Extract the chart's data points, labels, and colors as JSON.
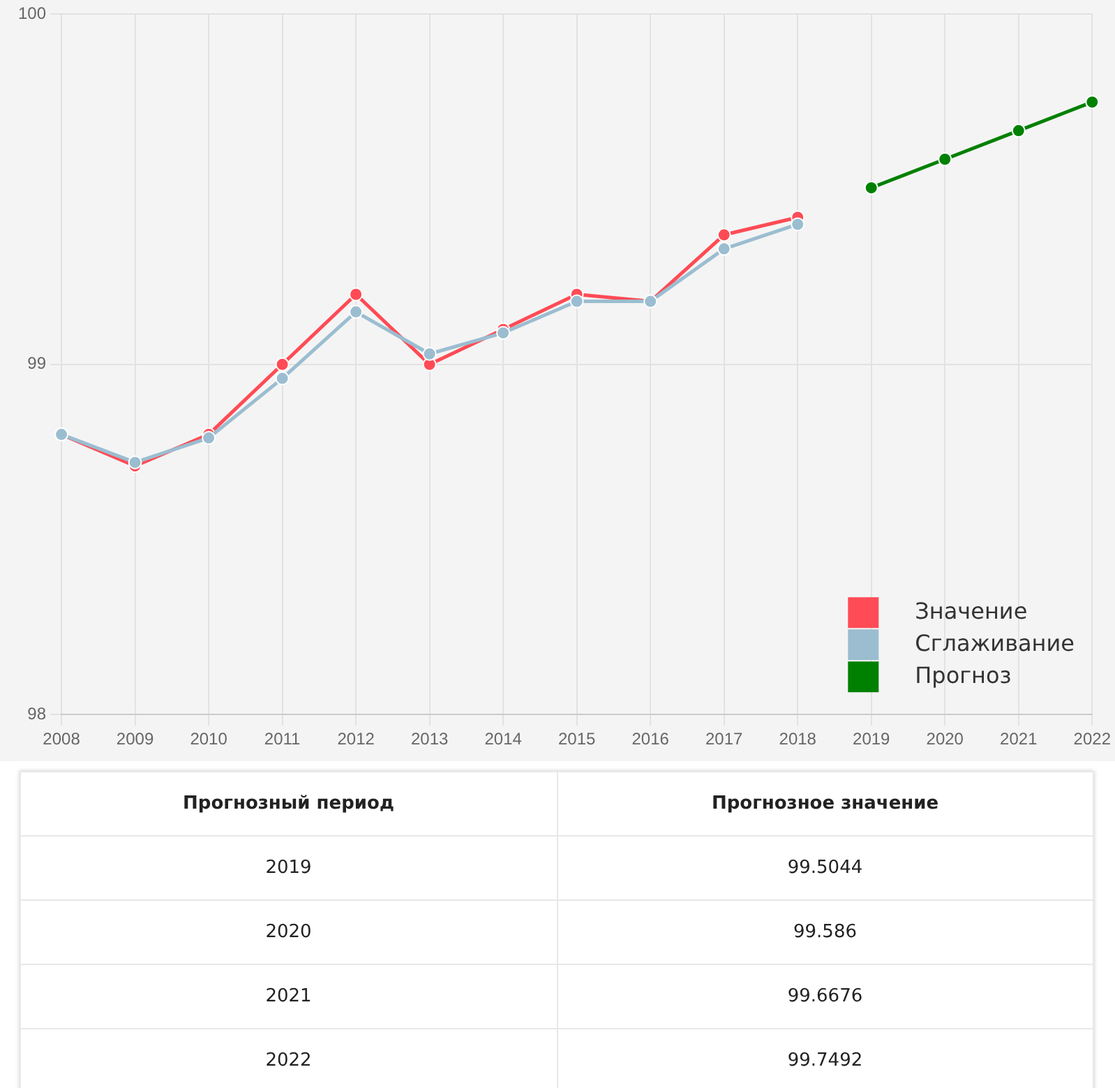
{
  "chart_data": {
    "type": "line",
    "categories": [
      "2008",
      "2009",
      "2010",
      "2011",
      "2012",
      "2013",
      "2014",
      "2015",
      "2016",
      "2017",
      "2018",
      "2019",
      "2020",
      "2021",
      "2022"
    ],
    "series": [
      {
        "name": "Значение",
        "color": "#ff4b55",
        "values": [
          98.8,
          98.71,
          98.8,
          99.0,
          99.2,
          99.0,
          99.1,
          99.2,
          99.18,
          99.37,
          99.42,
          null,
          null,
          null,
          null
        ]
      },
      {
        "name": "Сглаживание",
        "color": "#9bbdd0",
        "values": [
          98.8,
          98.72,
          98.79,
          98.96,
          99.15,
          99.03,
          99.09,
          99.18,
          99.18,
          99.33,
          99.4,
          null,
          null,
          null,
          null
        ]
      },
      {
        "name": "Прогноз",
        "color": "#008000",
        "values": [
          null,
          null,
          null,
          null,
          null,
          null,
          null,
          null,
          null,
          null,
          null,
          99.5044,
          99.586,
          99.6676,
          99.7492
        ]
      }
    ],
    "ylim": [
      98,
      100
    ],
    "yticks": [
      98,
      99,
      100
    ],
    "grid": true,
    "legend": "bottom right",
    "marker": "circle",
    "line_style": "solid",
    "annotations": [
      "Прогнозный период",
      "Прогнозное значение",
      "2019",
      "99.5044",
      "2020",
      "99.586",
      "2021",
      "99.6676",
      "2022",
      "99.7492"
    ]
  }
}
